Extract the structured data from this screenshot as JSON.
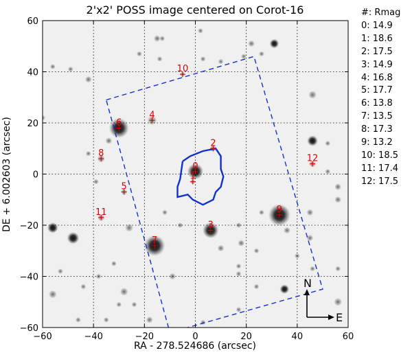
{
  "chart_data": {
    "type": "scatter",
    "title": "2'x2' POSS image centered on Corot-16",
    "xlabel": "RA - 278.524686 (arcsec)",
    "ylabel": "DE + 6.002603 (arcsec)",
    "xlim": [
      -60,
      60
    ],
    "ylim": [
      -60,
      60
    ],
    "xticks": [
      -60,
      -40,
      -20,
      0,
      20,
      40,
      60
    ],
    "yticks": [
      -60,
      -40,
      -20,
      0,
      20,
      40,
      60
    ],
    "grid": true,
    "legend_header": "#: Rmag",
    "stars": [
      {
        "id": "0",
        "ra": 0,
        "de": 1,
        "rmag": 14.9
      },
      {
        "id": "1",
        "ra": -1,
        "de": -3,
        "rmag": 18.6
      },
      {
        "id": "2",
        "ra": 7,
        "de": 10,
        "rmag": 17.5
      },
      {
        "id": "3",
        "ra": 6,
        "de": -22,
        "rmag": 14.9
      },
      {
        "id": "4",
        "ra": -17,
        "de": 21,
        "rmag": 16.8
      },
      {
        "id": "5",
        "ra": -28,
        "de": -7,
        "rmag": 17.7
      },
      {
        "id": "6",
        "ra": -30,
        "de": 18,
        "rmag": 13.8
      },
      {
        "id": "7",
        "ra": -16,
        "de": -28,
        "rmag": 13.5
      },
      {
        "id": "8",
        "ra": -37,
        "de": 6,
        "rmag": 17.3
      },
      {
        "id": "9",
        "ra": 33,
        "de": -16,
        "rmag": 13.2
      },
      {
        "id": "10",
        "ra": -5,
        "de": 39,
        "rmag": 18.5
      },
      {
        "id": "11",
        "ra": -37,
        "de": -17,
        "rmag": 17.4
      },
      {
        "id": "12",
        "ra": 46,
        "de": 4,
        "rmag": 17.5
      }
    ],
    "field_outline_dashed": [
      [
        -35,
        29
      ],
      [
        23,
        46
      ],
      [
        50,
        -45
      ],
      [
        -10,
        -62
      ],
      [
        -35,
        29
      ]
    ],
    "mask_outline": [
      [
        -5,
        5
      ],
      [
        -2,
        7
      ],
      [
        3,
        9
      ],
      [
        8,
        10
      ],
      [
        10,
        7
      ],
      [
        10,
        2
      ],
      [
        11,
        -1
      ],
      [
        10,
        -5
      ],
      [
        8,
        -7
      ],
      [
        7,
        -10
      ],
      [
        3,
        -12
      ],
      [
        -1,
        -10
      ],
      [
        -3,
        -8
      ],
      [
        -7,
        -9
      ],
      [
        -7,
        -5
      ],
      [
        -6,
        -2
      ],
      [
        -5,
        5
      ]
    ],
    "compass": {
      "north": "N",
      "east": "E"
    }
  }
}
